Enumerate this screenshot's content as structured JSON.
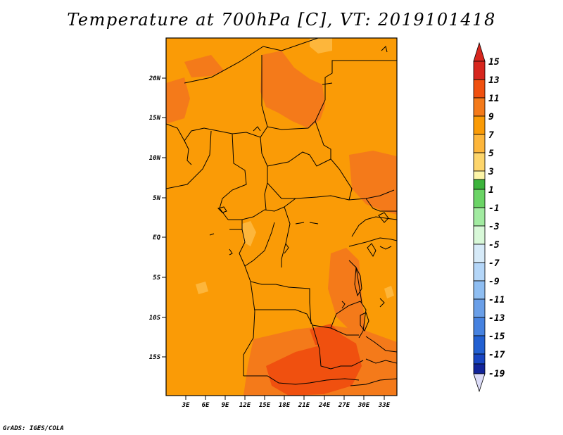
{
  "title": "Temperature at 700hPa [C], VT: 2019101418",
  "credit": "GrADS: IGES/COLA",
  "map": {
    "lat_labels": [
      "20N",
      "15N",
      "10N",
      "5N",
      "EQ",
      "5S",
      "10S",
      "15S"
    ],
    "lon_labels": [
      "3E",
      "6E",
      "9E",
      "12E",
      "15E",
      "18E",
      "21E",
      "24E",
      "27E",
      "30E",
      "33E"
    ],
    "lat_range": [
      -20,
      24.5
    ],
    "lon_range": [
      0,
      35.5
    ]
  },
  "colorbar": {
    "labels": [
      "15",
      "13",
      "11",
      "9",
      "7",
      "5",
      "3",
      "1",
      "-1",
      "-3",
      "-5",
      "-7",
      "-9",
      "-11",
      "-13",
      "-15",
      "-17",
      "-19"
    ],
    "colors": [
      "#d7261e",
      "#f0500f",
      "#f47a1a",
      "#fa9b06",
      "#fdb63b",
      "#fdd56b",
      "#fdf5a8",
      "#3cb43c",
      "#6bd466",
      "#a2eba1",
      "#d8f8d8",
      "#d6eaf8",
      "#b4d6f8",
      "#8fbef2",
      "#6a9fe8",
      "#4682e0",
      "#2260d2",
      "#1845c2",
      "#12249a"
    ],
    "top_arrow_color": "#d7261e",
    "bottom_arrow_color": "#dcdcf8"
  },
  "palette": {
    "base": "#fa9b06",
    "warm": "#f47a1a",
    "hot": "#f0500f",
    "cool": "#fdb63b"
  }
}
